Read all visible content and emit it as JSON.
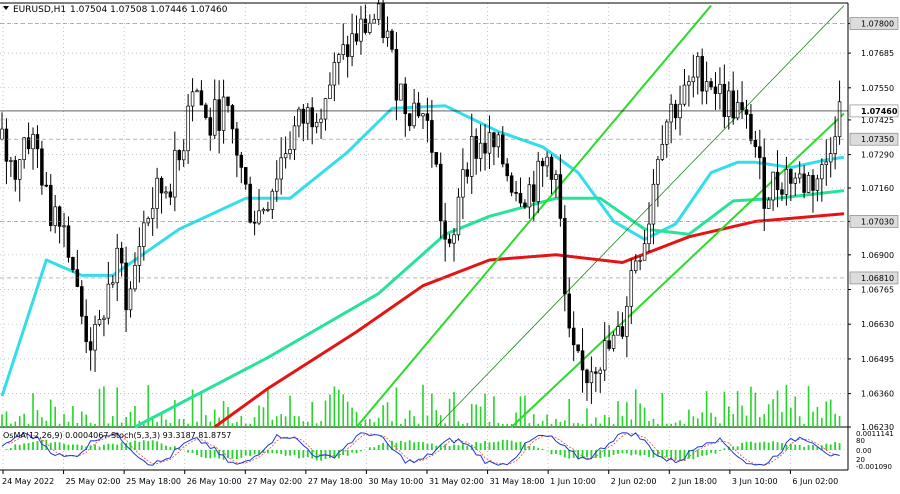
{
  "header": {
    "symbol": "EURUSD,H1",
    "ohlc": "1.07504 1.07508 1.07446 1.07460"
  },
  "indicator": {
    "label": "OsMA(12,26,9) 0.0004067  Stoch(5,3,3) 93.3187 81.8757",
    "ticks": [
      "0.0011141",
      "80",
      "0.00",
      "20",
      "-0.001090"
    ]
  },
  "colors": {
    "background": "#ffffff",
    "grid": "#9fb2c2",
    "candle": "#000000",
    "ema_fast": "#33dde9",
    "ema_mid": "#27e39a",
    "ema_slow": "#e51414",
    "channel": "#2adc2a",
    "volume": "#26d42a",
    "osma": "#26d42a",
    "stoch_main": "#1f3bd6",
    "stoch_signal": "#e05050"
  },
  "chart_data": {
    "type": "candlestick",
    "symbol": "EURUSD",
    "timeframe": "H1",
    "ylim": [
      1.0623,
      1.0788
    ],
    "y_ticks": [
      "1.07800",
      "1.07685",
      "1.07550",
      "1.07425",
      "1.07290",
      "1.07160",
      "1.07030",
      "1.06900",
      "1.06765",
      "1.06630",
      "1.06495",
      "1.06360",
      "1.06230"
    ],
    "marked_levels": [
      "1.07800",
      "1.07460",
      "1.07350",
      "1.07030",
      "1.06810"
    ],
    "current_price": "1.07460",
    "x_labels": [
      "24 May 2022",
      "25 May 02:00",
      "25 May 18:00",
      "26 May 10:00",
      "27 May 02:00",
      "27 May 18:00",
      "30 May 10:00",
      "31 May 02:00",
      "31 May 18:00",
      "1 Jun 10:00",
      "2 Jun 02:00",
      "2 Jun 18:00",
      "3 Jun 10:00",
      "6 Jun 02:00"
    ],
    "price_anchors": [
      [
        0,
        1.0735
      ],
      [
        3,
        1.0722
      ],
      [
        6,
        1.0738
      ],
      [
        9,
        1.0728
      ],
      [
        11,
        1.0705
      ],
      [
        13,
        1.0712
      ],
      [
        16,
        1.0692
      ],
      [
        18,
        1.0668
      ],
      [
        20,
        1.0658
      ],
      [
        22,
        1.0655
      ],
      [
        24,
        1.0675
      ],
      [
        27,
        1.0688
      ],
      [
        29,
        1.067
      ],
      [
        32,
        1.07
      ],
      [
        35,
        1.0712
      ],
      [
        38,
        1.0718
      ],
      [
        41,
        1.0728
      ],
      [
        43,
        1.076
      ],
      [
        45,
        1.0752
      ],
      [
        47,
        1.0738
      ],
      [
        50,
        1.0748
      ],
      [
        53,
        1.0735
      ],
      [
        56,
        1.071
      ],
      [
        58,
        1.0705
      ],
      [
        61,
        1.0715
      ],
      [
        64,
        1.073
      ],
      [
        67,
        1.074
      ],
      [
        70,
        1.0745
      ],
      [
        73,
        1.0752
      ],
      [
        76,
        1.0762
      ],
      [
        79,
        1.0772
      ],
      [
        82,
        1.0778
      ],
      [
        84,
        1.0782
      ],
      [
        87,
        1.0778
      ],
      [
        89,
        1.076
      ],
      [
        92,
        1.0748
      ],
      [
        95,
        1.0748
      ],
      [
        98,
        1.073
      ],
      [
        100,
        1.0698
      ],
      [
        102,
        1.0685
      ],
      [
        104,
        1.0725
      ],
      [
        107,
        1.0732
      ],
      [
        110,
        1.0733
      ],
      [
        113,
        1.0728
      ],
      [
        116,
        1.0718
      ],
      [
        119,
        1.0715
      ],
      [
        122,
        1.072
      ],
      [
        124,
        1.073
      ],
      [
        126,
        1.0715
      ],
      [
        128,
        1.0658
      ],
      [
        130,
        1.0646
      ],
      [
        132,
        1.0642
      ],
      [
        134,
        1.065
      ],
      [
        137,
        1.0652
      ],
      [
        140,
        1.0658
      ],
      [
        143,
        1.0688
      ],
      [
        146,
        1.07
      ],
      [
        149,
        1.0738
      ],
      [
        152,
        1.0748
      ],
      [
        155,
        1.0752
      ],
      [
        158,
        1.0762
      ],
      [
        161,
        1.0758
      ],
      [
        163,
        1.075
      ],
      [
        166,
        1.0748
      ],
      [
        168,
        1.074
      ],
      [
        170,
        1.0738
      ],
      [
        172,
        1.0715
      ],
      [
        175,
        1.0718
      ],
      [
        178,
        1.0722
      ],
      [
        181,
        1.0718
      ],
      [
        184,
        1.072
      ],
      [
        186,
        1.0722
      ],
      [
        188,
        1.074
      ],
      [
        189,
        1.0746
      ]
    ],
    "series": [
      {
        "name": "EMA fast",
        "color": "#33dde9",
        "points": [
          [
            0,
            1.0635
          ],
          [
            10,
            1.0688
          ],
          [
            18,
            1.0682
          ],
          [
            25,
            1.0682
          ],
          [
            40,
            1.07
          ],
          [
            55,
            1.0712
          ],
          [
            65,
            1.0712
          ],
          [
            78,
            1.073
          ],
          [
            88,
            1.0747
          ],
          [
            100,
            1.0748
          ],
          [
            112,
            1.0738
          ],
          [
            122,
            1.0732
          ],
          [
            130,
            1.0722
          ],
          [
            138,
            1.0703
          ],
          [
            145,
            1.0696
          ],
          [
            152,
            1.0702
          ],
          [
            160,
            1.0722
          ],
          [
            166,
            1.0726
          ],
          [
            170,
            1.0726
          ],
          [
            178,
            1.0724
          ],
          [
            186,
            1.0727
          ],
          [
            190,
            1.0728
          ]
        ]
      },
      {
        "name": "EMA mid",
        "color": "#27e39a",
        "points": [
          [
            30,
            1.0623
          ],
          [
            60,
            1.065
          ],
          [
            85,
            1.0675
          ],
          [
            100,
            1.0698
          ],
          [
            110,
            1.0705
          ],
          [
            125,
            1.0712
          ],
          [
            135,
            1.0712
          ],
          [
            145,
            1.07
          ],
          [
            155,
            1.0698
          ],
          [
            165,
            1.0711
          ],
          [
            175,
            1.0712
          ],
          [
            190,
            1.0715
          ]
        ]
      },
      {
        "name": "EMA slow",
        "color": "#e51414",
        "points": [
          [
            48,
            1.0623
          ],
          [
            60,
            1.0638
          ],
          [
            80,
            1.066
          ],
          [
            95,
            1.0678
          ],
          [
            110,
            1.0688
          ],
          [
            125,
            1.069
          ],
          [
            140,
            1.0687
          ],
          [
            155,
            1.0697
          ],
          [
            170,
            1.0703
          ],
          [
            190,
            1.0706
          ]
        ]
      }
    ],
    "channels": [
      {
        "style": "solid",
        "points": [
          [
            80,
            1.0623
          ],
          [
            160,
            1.0787
          ]
        ]
      },
      {
        "style": "solid",
        "points": [
          [
            115,
            1.0623
          ],
          [
            190,
            1.0745
          ]
        ]
      },
      {
        "style": "thin",
        "points": [
          [
            98,
            1.0623
          ],
          [
            190,
            1.0787
          ]
        ]
      }
    ]
  }
}
